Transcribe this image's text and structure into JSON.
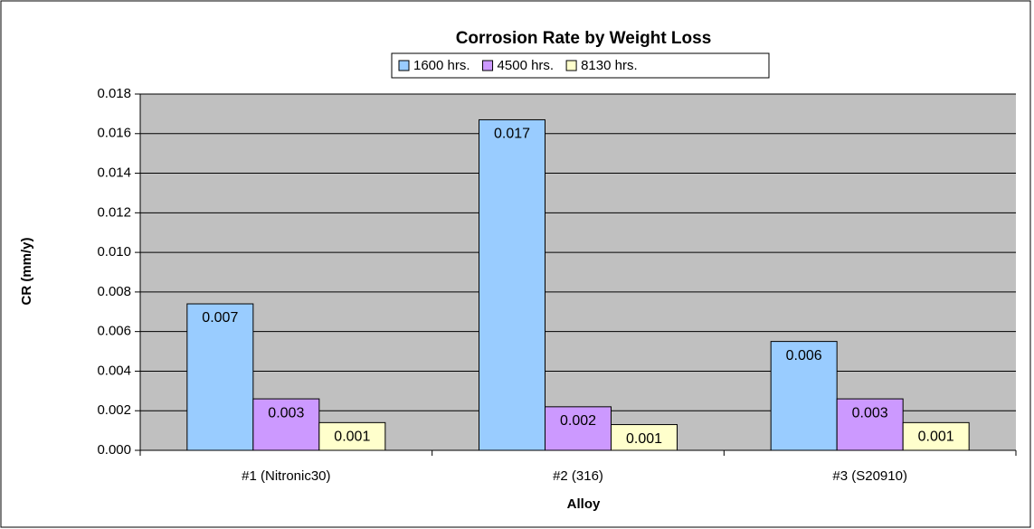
{
  "chart_data": {
    "type": "bar",
    "title": "Corrosion Rate by Weight Loss",
    "x_label": "Alloy",
    "y_label": "CR (mm/y)",
    "categories": [
      "#1 (Nitronic30)",
      "#2 (316)",
      "#3 (S20910)"
    ],
    "series": [
      {
        "name": "1600 hrs.",
        "color": "#99ccff",
        "values": [
          0.0074,
          0.0167,
          0.0055
        ],
        "value_labels": [
          "0.007",
          "0.017",
          "0.006"
        ]
      },
      {
        "name": "4500 hrs.",
        "color": "#cc99ff",
        "values": [
          0.0026,
          0.0022,
          0.0026
        ],
        "value_labels": [
          "0.003",
          "0.002",
          "0.003"
        ]
      },
      {
        "name": "8130 hrs.",
        "color": "#ffffcc",
        "values": [
          0.0014,
          0.0013,
          0.0014
        ],
        "value_labels": [
          "0.001",
          "0.001",
          "0.001"
        ]
      }
    ],
    "ylim": [
      0,
      0.018
    ],
    "yticks": [
      {
        "value": 0,
        "label": "0.000"
      },
      {
        "value": 0.002,
        "label": "0.002"
      },
      {
        "value": 0.004,
        "label": "0.004"
      },
      {
        "value": 0.006,
        "label": "0.006"
      },
      {
        "value": 0.008,
        "label": "0.008"
      },
      {
        "value": 0.01,
        "label": "0.010"
      },
      {
        "value": 0.012,
        "label": "0.012"
      },
      {
        "value": 0.014,
        "label": "0.014"
      },
      {
        "value": 0.016,
        "label": "0.016"
      },
      {
        "value": 0.018,
        "label": "0.018"
      }
    ],
    "grid": true,
    "plot_background": "#c0c0c0",
    "legend": "top"
  }
}
